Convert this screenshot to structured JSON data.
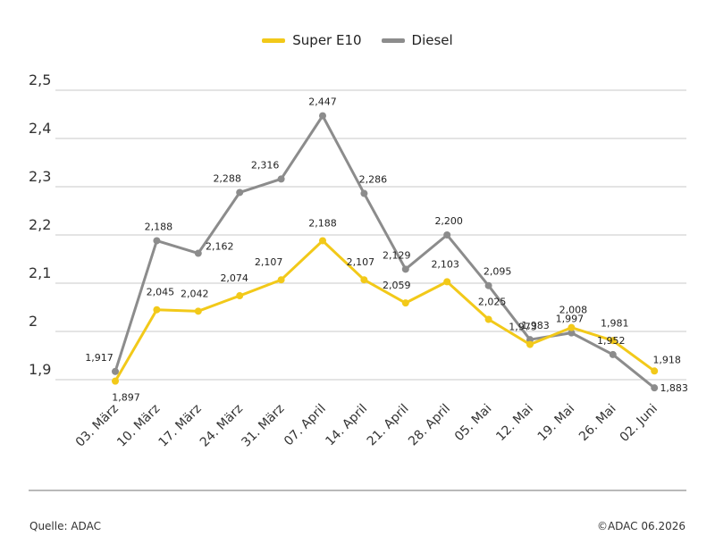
{
  "colors": {
    "super_e10": "#F2C919",
    "diesel": "#8C8C8C",
    "grid": "#d4d4d4",
    "axis_text": "#333333"
  },
  "legend": {
    "items": [
      {
        "label": "Super E10",
        "color": "#F2C919"
      },
      {
        "label": "Diesel",
        "color": "#8C8C8C"
      }
    ],
    "placement": "top-center"
  },
  "footer": {
    "source": "Quelle: ADAC",
    "copyright": "©ADAC 06.2026"
  },
  "chart_data": {
    "type": "line",
    "title": "",
    "xlabel": "",
    "ylabel": "",
    "ylim": [
      1.9,
      2.5
    ],
    "yticks": [
      "2,5",
      "2,4",
      "2,3",
      "2,2",
      "2,1",
      "2",
      "1,9"
    ],
    "ytick_values": [
      2.5,
      2.4,
      2.3,
      2.2,
      2.1,
      2.0,
      1.9
    ],
    "grid": true,
    "categories": [
      "03. März",
      "10. März",
      "17. März",
      "24. März",
      "31. März",
      "07. April",
      "14. April",
      "21. April",
      "28. April",
      "05. Mai",
      "12. Mai",
      "19. Mai",
      "26. Mai",
      "02. Juni"
    ],
    "series": [
      {
        "name": "Super E10",
        "color": "#F2C919",
        "values": [
          1.897,
          2.045,
          2.042,
          2.074,
          2.107,
          2.188,
          2.107,
          2.059,
          2.103,
          2.025,
          1.973,
          2.008,
          1.981,
          1.918
        ],
        "labels": [
          "1,897",
          "2,045",
          "2,042",
          "2,074",
          "2,107",
          "2,188",
          "2,107",
          "2,059",
          "2,103",
          "2,025",
          "1,973",
          "2,008",
          "1,981",
          "1,918"
        ]
      },
      {
        "name": "Diesel",
        "color": "#8C8C8C",
        "values": [
          1.917,
          2.188,
          2.162,
          2.288,
          2.316,
          2.447,
          2.286,
          2.129,
          2.2,
          2.095,
          1.983,
          1.997,
          1.952,
          1.883
        ],
        "labels": [
          "1,917",
          "2,188",
          "2,162",
          "2,288",
          "2,316",
          "2,447",
          "2,286",
          "2,129",
          "2,200",
          "2,095",
          "1,983",
          "1,997",
          "1,952",
          "1,883"
        ]
      }
    ]
  }
}
